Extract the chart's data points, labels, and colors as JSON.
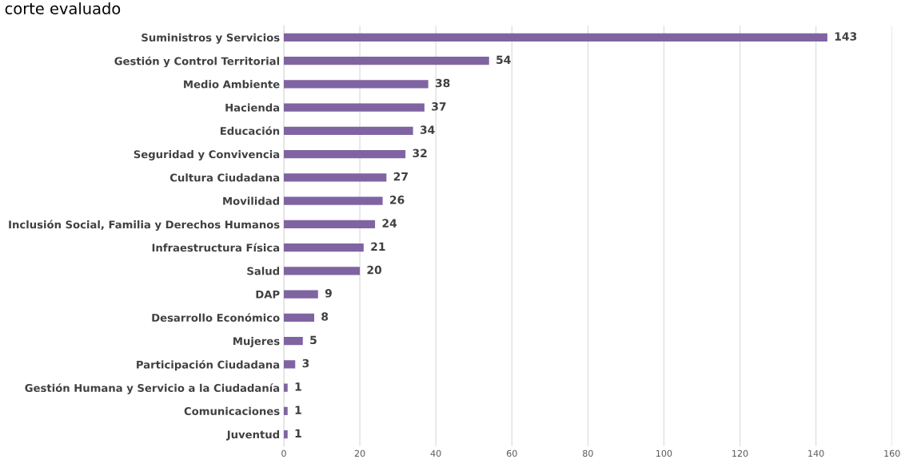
{
  "chart_data": {
    "type": "bar",
    "orientation": "horizontal",
    "title": "corte evaluado",
    "categories": [
      "Suministros y Servicios",
      "Gestión y Control Territorial",
      "Medio Ambiente",
      "Hacienda",
      "Educación",
      "Seguridad y Convivencia",
      "Cultura Ciudadana",
      "Movilidad",
      "Inclusión Social, Familia y Derechos Humanos",
      "Infraestructura Física",
      "Salud",
      "DAP",
      "Desarrollo Económico",
      "Mujeres",
      "Participación Ciudadana",
      "Gestión Humana y Servicio a la Ciudadanía",
      "Comunicaciones",
      "Juventud"
    ],
    "values": [
      143,
      54,
      38,
      37,
      34,
      32,
      27,
      26,
      24,
      21,
      20,
      9,
      8,
      5,
      3,
      1,
      1,
      1
    ],
    "color": "#8064a2",
    "data_labels": true,
    "grid": "x",
    "xlim": [
      0,
      160
    ],
    "xticks": [
      0,
      20,
      40,
      60,
      80,
      100,
      120,
      140,
      160
    ]
  }
}
